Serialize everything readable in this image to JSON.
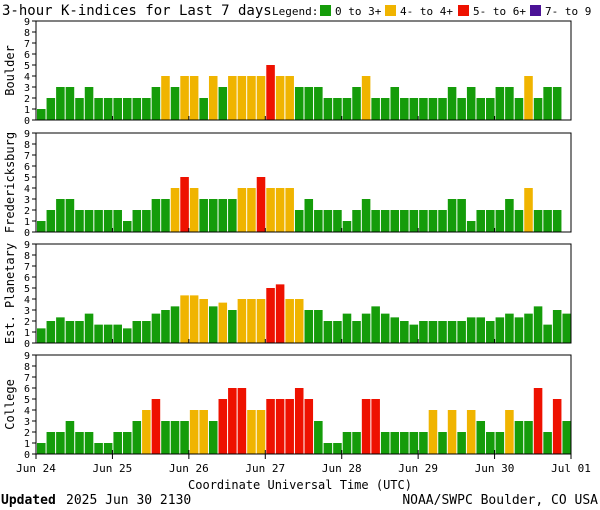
{
  "chart_data": {
    "type": "bar",
    "title": "3-hour K-indices for Last 7 days",
    "legend_label": "Legend:",
    "legend": [
      {
        "label": "0 to 3+",
        "color": "#159c0a"
      },
      {
        "label": "4- to 4+",
        "color": "#f0b400"
      },
      {
        "label": "5- to 6+",
        "color": "#ee1100"
      },
      {
        "label": "7- to 9",
        "color": "#4b1296"
      }
    ],
    "ylim": [
      0,
      9
    ],
    "yticks": [
      0,
      1,
      2,
      3,
      4,
      5,
      6,
      7,
      8,
      9
    ],
    "xlabel": "Coordinate Universal Time (UTC)",
    "xtick_labels": [
      "Jun 24",
      "Jun 25",
      "Jun 26",
      "Jun 27",
      "Jun 28",
      "Jun 29",
      "Jun 30",
      "Jul 01"
    ],
    "bins_per_day": 8,
    "series": [
      {
        "name": "Boulder",
        "values": [
          1,
          2,
          3,
          3,
          2,
          3,
          2,
          2,
          2,
          2,
          2,
          2,
          3,
          4,
          3,
          4,
          4,
          2,
          4,
          3,
          4,
          4,
          4,
          4,
          5,
          4,
          4,
          3,
          3,
          3,
          2,
          2,
          2,
          3,
          4,
          2,
          2,
          3,
          2,
          2,
          2,
          2,
          2,
          3,
          2,
          3,
          2,
          2,
          3,
          3,
          2,
          4,
          2,
          3,
          3,
          0
        ]
      },
      {
        "name": "Fredericksburg",
        "values": [
          1,
          2,
          3,
          3,
          2,
          2,
          2,
          2,
          2,
          1,
          2,
          2,
          3,
          3,
          4,
          5,
          4,
          3,
          3,
          3,
          3,
          4,
          4,
          5,
          4,
          4,
          4,
          2,
          3,
          2,
          2,
          2,
          1,
          2,
          3,
          2,
          2,
          2,
          2,
          2,
          2,
          2,
          2,
          3,
          3,
          1,
          2,
          2,
          2,
          3,
          2,
          4,
          2,
          2,
          2,
          0
        ]
      },
      {
        "name": "Est. Planetary",
        "values": [
          1.33,
          2,
          2.33,
          2,
          2,
          2.67,
          1.67,
          1.67,
          1.67,
          1.33,
          2,
          2,
          2.67,
          3,
          3.33,
          4.33,
          4.33,
          4,
          3.33,
          3.67,
          3,
          4,
          4,
          4,
          5,
          5.33,
          4,
          4,
          3,
          3,
          2,
          2,
          2.67,
          2,
          2.67,
          3.33,
          2.67,
          2.33,
          2,
          1.67,
          2,
          2,
          2,
          2,
          2,
          2.33,
          2.33,
          2,
          2.33,
          2.67,
          2.33,
          2.67,
          3.33,
          1.67,
          3,
          2.67
        ]
      },
      {
        "name": "College",
        "values": [
          1,
          2,
          2,
          3,
          2,
          2,
          1,
          1,
          2,
          2,
          3,
          4,
          5,
          3,
          3,
          3,
          4,
          4,
          3,
          5,
          6,
          6,
          4,
          4,
          5,
          5,
          5,
          6,
          5,
          3,
          1,
          1,
          2,
          2,
          5,
          5,
          2,
          2,
          2,
          2,
          2,
          4,
          2,
          4,
          2,
          4,
          3,
          2,
          2,
          4,
          3,
          3,
          6,
          2,
          5,
          3
        ]
      }
    ]
  },
  "footer": {
    "updated_label": "Updated",
    "updated_value": "2025 Jun 30 2130",
    "source": "NOAA/SWPC Boulder, CO USA"
  }
}
